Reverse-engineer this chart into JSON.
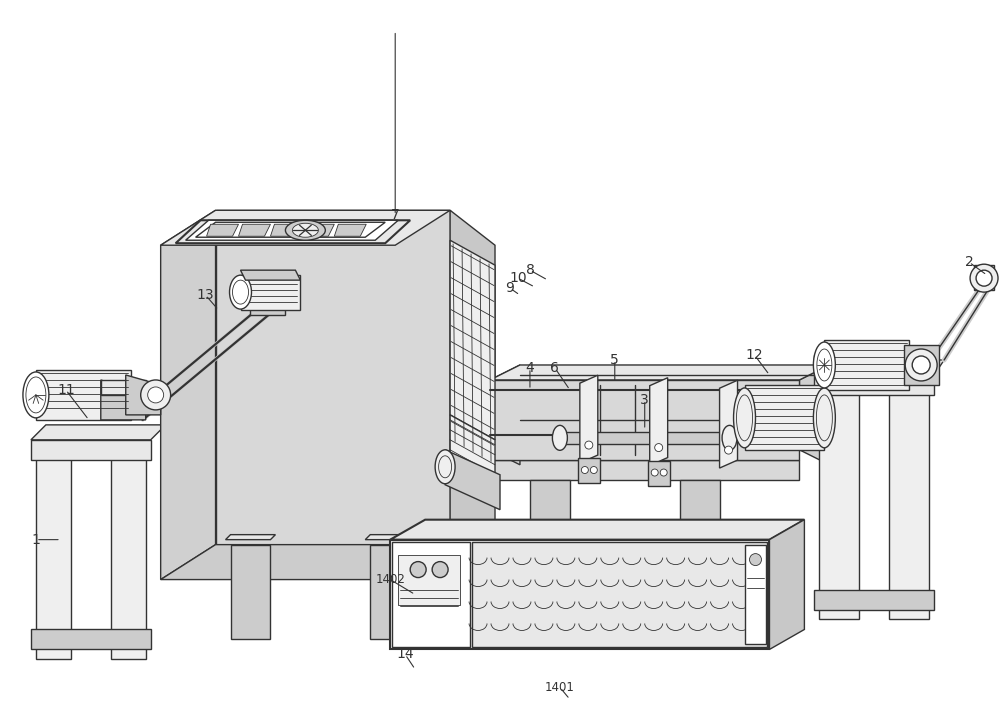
{
  "background_color": "#ffffff",
  "line_color": "#333333",
  "label_color": "#000000",
  "fig_width": 10.0,
  "fig_height": 7.12,
  "dpi": 100,
  "face_top": "#e8e8e8",
  "face_front": "#d8d8d8",
  "face_right": "#c8c8c8",
  "face_left": "#d0d0d0",
  "white": "#ffffff",
  "light_gray": "#efefef",
  "med_gray": "#cccccc",
  "dark_gray": "#aaaaaa",
  "lw": 1.0,
  "tlw": 0.6,
  "thk": 1.6
}
